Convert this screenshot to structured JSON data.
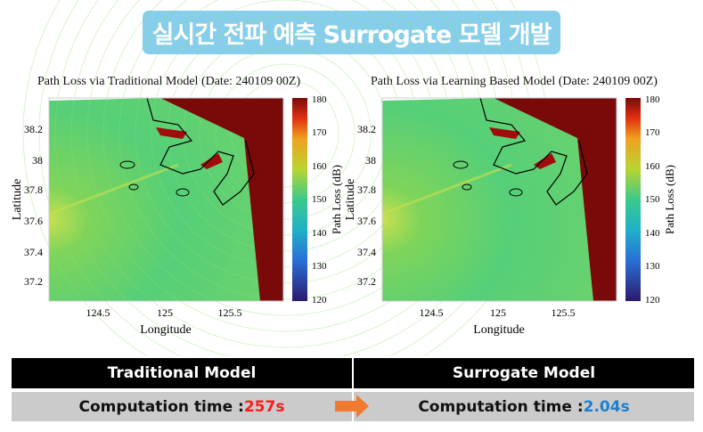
{
  "banner": {
    "title": "실시간 전파 예측 Surrogate 모델 개발",
    "color": "#87ceeb"
  },
  "plots": [
    {
      "title": "Path Loss via Traditional Model (Date: 240109 00Z)"
    },
    {
      "title": "Path Loss via Learning Based Model (Date: 240109 00Z)"
    }
  ],
  "axes": {
    "xlabel": "Longitude",
    "ylabel": "Latitude",
    "xticks": [
      "124.5",
      "125",
      "125.5"
    ],
    "yticks": [
      "38.2",
      "38",
      "37.8",
      "37.6",
      "37.4",
      "37.2"
    ],
    "colorbar_label": "Path Loss (dB)",
    "colorbar_ticks": [
      "180",
      "170",
      "160",
      "150",
      "140",
      "130",
      "120"
    ]
  },
  "table": {
    "headers": [
      "Traditional Model",
      "Surrogate Model"
    ],
    "label": "Computation time : ",
    "traditional_time": "257s",
    "surrogate_time": "2.04s",
    "colors": {
      "traditional": "#ff1a1a",
      "surrogate": "#1e7fd0",
      "arrow": "#f07a30"
    }
  }
}
